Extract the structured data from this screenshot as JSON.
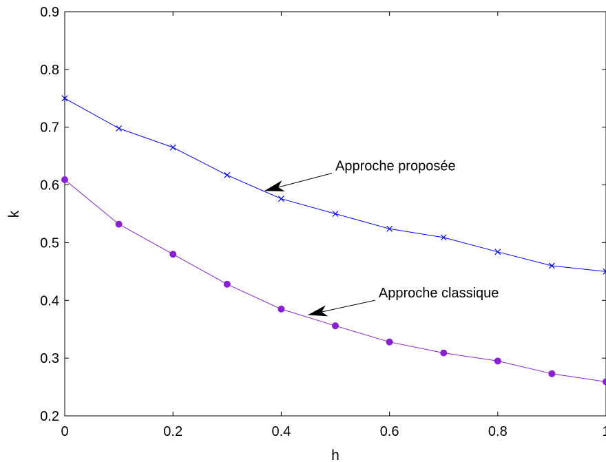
{
  "chart_data": {
    "type": "line",
    "title": "",
    "xlabel": "h",
    "ylabel": "k",
    "xlim": [
      0,
      1
    ],
    "ylim": [
      0.2,
      0.9
    ],
    "xticks": [
      0,
      0.2,
      0.4,
      0.6,
      0.8,
      1
    ],
    "xtick_labels": [
      "0",
      "0.2",
      "0.4",
      "0.6",
      "0.8",
      "1"
    ],
    "yticks": [
      0.2,
      0.3,
      0.4,
      0.5,
      0.6,
      0.7,
      0.8,
      0.9
    ],
    "ytick_labels": [
      "0.2",
      "0.3",
      "0.4",
      "0.5",
      "0.6",
      "0.7",
      "0.8",
      "0.9"
    ],
    "grid": false,
    "legend": "none",
    "x": [
      0,
      0.1,
      0.2,
      0.3,
      0.4,
      0.5,
      0.6,
      0.7,
      0.8,
      0.9,
      1.0
    ],
    "series": [
      {
        "marker": "x",
        "color": "#0000ff",
        "values": [
          0.75,
          0.698,
          0.665,
          0.617,
          0.576,
          0.55,
          0.524,
          0.509,
          0.484,
          0.46,
          0.45
        ]
      },
      {
        "marker": "dot",
        "color": "#8b1fd8",
        "values": [
          0.609,
          0.532,
          0.48,
          0.428,
          0.385,
          0.356,
          0.328,
          0.309,
          0.295,
          0.273,
          0.259
        ]
      }
    ],
    "annotations": [
      {
        "text": "Approche proposée",
        "text_at": [
          0.5,
          0.625
        ],
        "arrow_to": [
          0.37,
          0.59
        ]
      },
      {
        "text": "Approche classique",
        "text_at": [
          0.58,
          0.405
        ],
        "arrow_to": [
          0.45,
          0.375
        ]
      }
    ]
  }
}
